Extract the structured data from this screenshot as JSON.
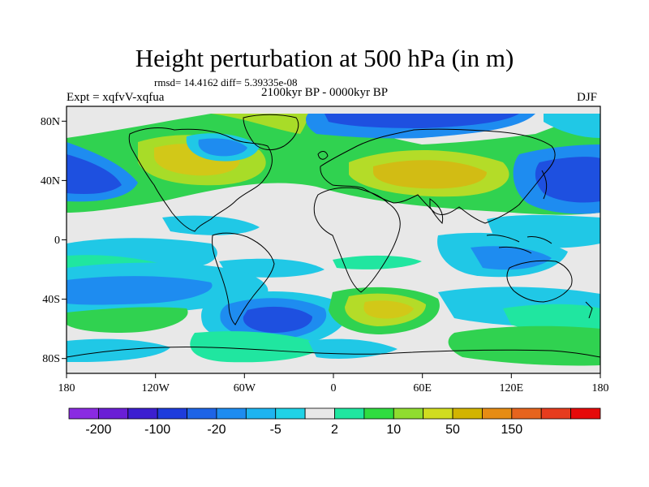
{
  "title": "Height perturbation at 500 hPa (in m)",
  "stats": "rmsd= 14.4162 diff= 5.39335e-08",
  "subtitle": "2100kyr BP - 0000kyr BP",
  "expt": "Expt = xqfvV-xqfua",
  "season": "DJF",
  "map": {
    "x_ticks": [
      "180",
      "120W",
      "60W",
      "0",
      "60E",
      "120E",
      "180"
    ],
    "y_ticks": [
      "80N",
      "40N",
      "0",
      "40S",
      "80S"
    ],
    "lon_range": [
      -180,
      180
    ],
    "lat_range": [
      -90,
      90
    ],
    "projection": "cylindrical-equidistant"
  },
  "colorbar": {
    "colors": [
      "#8a2be2",
      "#6a1fd6",
      "#3c1fd0",
      "#1e3cdc",
      "#1e64e6",
      "#1e8cf0",
      "#1eb4f0",
      "#20d2e6",
      "#e8e8e8",
      "#20e6a0",
      "#30dc40",
      "#90dc30",
      "#d0dc20",
      "#d2b400",
      "#e68c14",
      "#e6641e",
      "#e63c1e",
      "#e60a0a"
    ],
    "labels": [
      "-200",
      "-100",
      "-20",
      "-5",
      "2",
      "10",
      "50",
      "150"
    ]
  }
}
